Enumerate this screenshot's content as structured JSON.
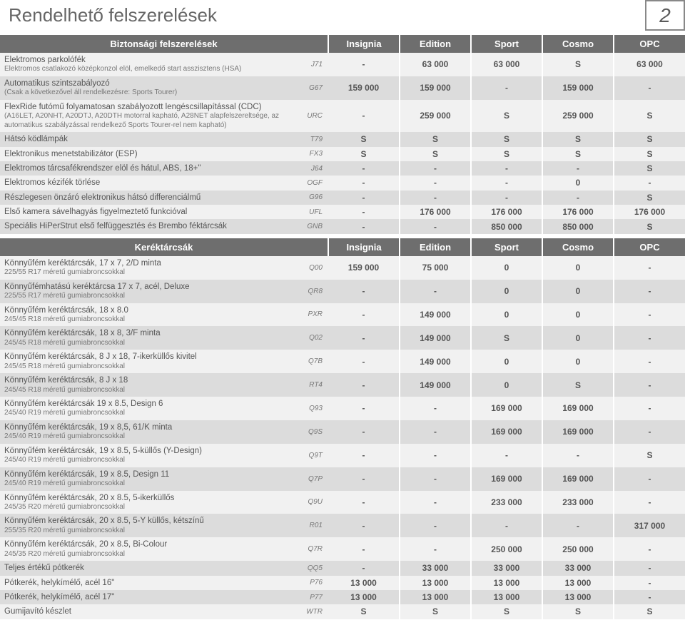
{
  "page": {
    "title": "Rendelhető felszerelések",
    "number": "2"
  },
  "columns_common": [
    "Insignia",
    "Edition",
    "Sport",
    "Cosmo",
    "OPC"
  ],
  "sections": [
    {
      "name": "Biztonsági felszerelések",
      "rows": [
        {
          "shade": "light",
          "lines": [
            "Elektromos parkolófék",
            "Elektromos csatlakozó középkonzol elöl, emelkedő start asszisztens (HSA)"
          ],
          "code": "J71",
          "vals": [
            "-",
            "63 000",
            "63 000",
            "S",
            "63 000"
          ]
        },
        {
          "shade": "dark",
          "lines": [
            "Automatikus szintszabályozó",
            "(Csak a következővel áll rendelkezésre: Sports Tourer)"
          ],
          "code": "G67",
          "vals": [
            "159 000",
            "159 000",
            "-",
            "159 000",
            "-"
          ]
        },
        {
          "shade": "light",
          "lines": [
            "FlexRide futómű folyamatosan szabályozott lengéscsillapítással (CDC)",
            "(A16LET, A20NHT, A20DTJ, A20DTH motorral kapható, A28NET alapfelszereltsége, az automatikus szabályzással rendelkező Sports Tourer-rel nem kapható)"
          ],
          "code": "URC",
          "vals": [
            "-",
            "259 000",
            "S",
            "259 000",
            "S"
          ]
        },
        {
          "shade": "dark",
          "lines": [
            "Hátsó ködlámpák"
          ],
          "code": "T79",
          "vals": [
            "S",
            "S",
            "S",
            "S",
            "S"
          ]
        },
        {
          "shade": "light",
          "lines": [
            "Elektronikus menetstabilizátor (ESP)"
          ],
          "code": "FX3",
          "vals": [
            "S",
            "S",
            "S",
            "S",
            "S"
          ]
        },
        {
          "shade": "dark",
          "lines": [
            "Elektromos tárcsafékrendszer elöl és hátul, ABS, 18+\""
          ],
          "code": "J64",
          "vals": [
            "-",
            "-",
            "-",
            "-",
            "S"
          ]
        },
        {
          "shade": "light",
          "lines": [
            "Elektromos kézifék törlése"
          ],
          "code": "OGF",
          "vals": [
            "-",
            "-",
            "-",
            "0",
            "-"
          ]
        },
        {
          "shade": "dark",
          "lines": [
            "Részlegesen önzáró elektronikus hátsó differenciálmű"
          ],
          "code": "G96",
          "vals": [
            "-",
            "-",
            "-",
            "-",
            "S"
          ]
        },
        {
          "shade": "light",
          "lines": [
            "Első kamera sávelhagyás figyelmeztető funkcióval"
          ],
          "code": "UFL",
          "vals": [
            "-",
            "176 000",
            "176 000",
            "176 000",
            "176 000"
          ]
        },
        {
          "shade": "dark",
          "lines": [
            "Speciális HiPerStrut első felfüggesztés és Brembo féktárcsák"
          ],
          "code": "GNB",
          "vals": [
            "-",
            "-",
            "850 000",
            "850 000",
            "S"
          ]
        }
      ]
    },
    {
      "name": "Keréktárcsák",
      "rows": [
        {
          "shade": "light",
          "lines": [
            "Könnyűfém keréktárcsák, 17 x 7, 2/D minta",
            "225/55 R17 méretű gumiabroncsokkal"
          ],
          "code": "Q00",
          "vals": [
            "159 000",
            "75 000",
            "0",
            "0",
            "-"
          ]
        },
        {
          "shade": "dark",
          "lines": [
            "Könnyűfémhatású keréktárcsa 17 x 7, acél, Deluxe",
            "225/55 R17 méretű gumiabroncsokkal"
          ],
          "code": "QR8",
          "vals": [
            "-",
            "-",
            "0",
            "0",
            "-"
          ]
        },
        {
          "shade": "light",
          "lines": [
            "Könnyűfém keréktárcsák, 18 x 8.0",
            "245/45 R18 méretű gumiabroncsokkal"
          ],
          "code": "PXR",
          "vals": [
            "-",
            "149 000",
            "0",
            "0",
            "-"
          ]
        },
        {
          "shade": "dark",
          "lines": [
            "Könnyűfém keréktárcsák, 18 x 8, 3/F minta",
            "245/45 R18 méretű gumiabroncsokkal"
          ],
          "code": "Q02",
          "vals": [
            "-",
            "149 000",
            "S",
            "0",
            "-"
          ]
        },
        {
          "shade": "light",
          "lines": [
            "Könnyűfém keréktárcsák, 8 J x 18, 7-ikerküllős kivitel",
            "245/45 R18 méretű gumiabroncsokkal"
          ],
          "code": "Q7B",
          "vals": [
            "-",
            "149 000",
            "0",
            "0",
            "-"
          ]
        },
        {
          "shade": "dark",
          "lines": [
            "Könnyűfém keréktárcsák, 8 J x 18",
            "245/45 R18 méretű gumiabroncsokkal"
          ],
          "code": "RT4",
          "vals": [
            "-",
            "149 000",
            "0",
            "S",
            "-"
          ]
        },
        {
          "shade": "light",
          "lines": [
            "Könnyűfém keréktárcsák 19 x 8.5, Design 6",
            "245/40 R19 méretű gumiabroncsokkal"
          ],
          "code": "Q93",
          "vals": [
            "-",
            "-",
            "169 000",
            "169 000",
            "-"
          ]
        },
        {
          "shade": "dark",
          "lines": [
            "Könnyűfém keréktárcsák, 19 x 8,5, 61/K minta",
            "245/40 R19 méretű gumiabroncsokkal"
          ],
          "code": "Q9S",
          "vals": [
            "-",
            "-",
            "169 000",
            "169 000",
            "-"
          ]
        },
        {
          "shade": "light",
          "lines": [
            "Könnyűfém keréktárcsák, 19 x 8.5, 5-küllős (Y-Design)",
            "245/40 R19 méretű gumiabroncsokkal"
          ],
          "code": "Q9T",
          "vals": [
            "-",
            "-",
            "-",
            "-",
            "S"
          ]
        },
        {
          "shade": "dark",
          "lines": [
            "Könnyűfém keréktárcsák, 19 x 8.5, Design 11",
            "245/40 R19 méretű gumiabroncsokkal"
          ],
          "code": "Q7P",
          "vals": [
            "-",
            "-",
            "169 000",
            "169 000",
            "-"
          ]
        },
        {
          "shade": "light",
          "lines": [
            "Könnyűfém keréktárcsák, 20 x 8.5, 5-ikerküllős",
            "245/35 R20 méretű gumiabroncsokkal"
          ],
          "code": "Q9U",
          "vals": [
            "-",
            "-",
            "233 000",
            "233 000",
            "-"
          ]
        },
        {
          "shade": "dark",
          "lines": [
            "Könnyűfém keréktárcsák, 20 x 8.5, 5-Y küllős, kétszínű",
            "255/35 R20 méretű gumiabroncsokkal"
          ],
          "code": "R01",
          "vals": [
            "-",
            "-",
            "-",
            "-",
            "317 000"
          ]
        },
        {
          "shade": "light",
          "lines": [
            "Könnyűfém keréktárcsák, 20 x 8.5, Bi-Colour",
            "245/35 R20 méretű gumiabroncsokkal"
          ],
          "code": "Q7R",
          "vals": [
            "-",
            "-",
            "250 000",
            "250 000",
            "-"
          ]
        },
        {
          "shade": "dark",
          "lines": [
            "Teljes értékű pótkerék"
          ],
          "code": "QQ5",
          "vals": [
            "-",
            "33 000",
            "33 000",
            "33 000",
            "-"
          ]
        },
        {
          "shade": "light",
          "lines": [
            "Pótkerék, helykímélő, acél 16\""
          ],
          "code": "P76",
          "vals": [
            "13 000",
            "13 000",
            "13 000",
            "13 000",
            "-"
          ]
        },
        {
          "shade": "dark",
          "lines": [
            "Pótkerék, helykímélő, acél 17\""
          ],
          "code": "P77",
          "vals": [
            "13 000",
            "13 000",
            "13 000",
            "13 000",
            "-"
          ]
        },
        {
          "shade": "light",
          "lines": [
            "Gumijavító készlet"
          ],
          "code": "WTR",
          "vals": [
            "S",
            "S",
            "S",
            "S",
            "S"
          ]
        }
      ]
    }
  ]
}
